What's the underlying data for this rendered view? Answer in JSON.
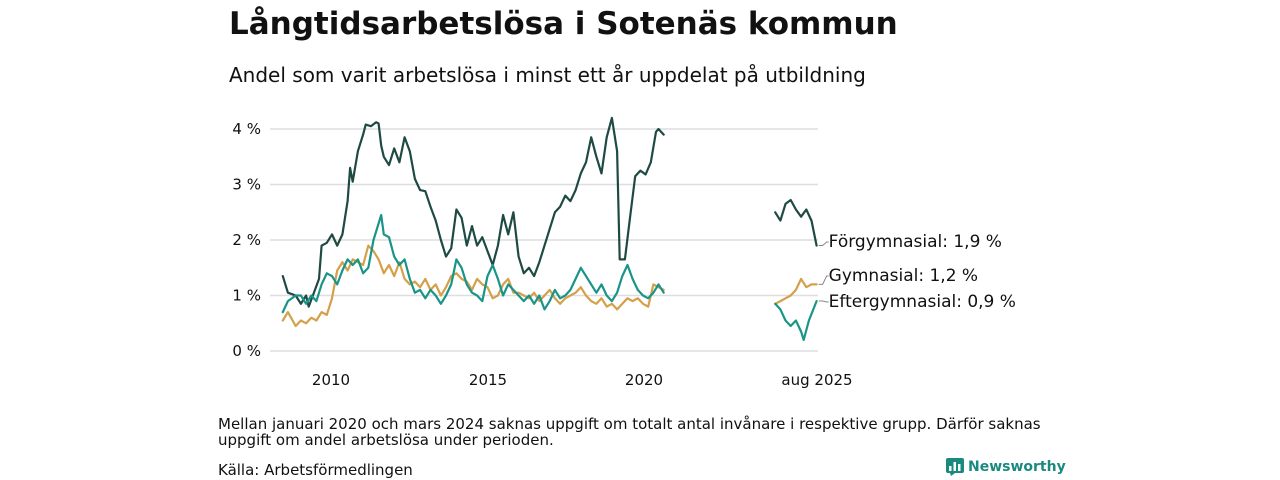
{
  "header": {
    "title": "Långtidsarbetslösa i Sotenäs kommun",
    "subtitle": "Andel som varit arbetslösa i minst ett år uppdelat på utbildning"
  },
  "footer": {
    "note": "Mellan januari 2020 och mars 2024 saknas uppgift om totalt antal invånare i respektive grupp. Därför saknas uppgift om andel arbetslösa under perioden.",
    "source": "Källa: Arbetsförmedlingen",
    "brand": "Newsworthy"
  },
  "chart_data": {
    "type": "line",
    "title": "Långtidsarbetslösa i Sotenäs kommun",
    "subtitle": "Andel som varit arbetslösa i minst ett år uppdelat på utbildning",
    "x_tick_labels": [
      "2010",
      "2015",
      "2020",
      "aug 2025"
    ],
    "y_tick_labels": [
      "0 %",
      "1 %",
      "2 %",
      "3 %",
      "4 %"
    ],
    "ylim": [
      0,
      4.3
    ],
    "grid": true,
    "legend": "end-of-line labels",
    "series": [
      {
        "name": "Förgymnasial",
        "end_label": "Förgymnasial: 1,9 %",
        "color": "#1f4a44",
        "segments": [
          [
            [
              "2008-06",
              1.35
            ],
            [
              "2008-08",
              1.05
            ],
            [
              "2008-11",
              1.0
            ],
            [
              "2009-01",
              0.85
            ],
            [
              "2009-03",
              1.0
            ],
            [
              "2009-04",
              0.8
            ],
            [
              "2009-06",
              1.05
            ],
            [
              "2009-08",
              1.3
            ],
            [
              "2009-09",
              1.9
            ],
            [
              "2009-11",
              1.95
            ],
            [
              "2010-01",
              2.1
            ],
            [
              "2010-03",
              1.9
            ],
            [
              "2010-05",
              2.1
            ],
            [
              "2010-07",
              2.7
            ],
            [
              "2010-08",
              3.3
            ],
            [
              "2010-09",
              3.05
            ],
            [
              "2010-11",
              3.6
            ],
            [
              "2011-01",
              3.9
            ],
            [
              "2011-02",
              4.08
            ],
            [
              "2011-04",
              4.05
            ],
            [
              "2011-06",
              4.12
            ],
            [
              "2011-07",
              4.1
            ],
            [
              "2011-08",
              3.7
            ],
            [
              "2011-09",
              3.5
            ],
            [
              "2011-11",
              3.35
            ],
            [
              "2012-01",
              3.65
            ],
            [
              "2012-03",
              3.4
            ],
            [
              "2012-05",
              3.85
            ],
            [
              "2012-07",
              3.6
            ],
            [
              "2012-09",
              3.1
            ],
            [
              "2012-11",
              2.9
            ],
            [
              "2013-01",
              2.88
            ],
            [
              "2013-03",
              2.6
            ],
            [
              "2013-05",
              2.35
            ],
            [
              "2013-07",
              2.0
            ],
            [
              "2013-09",
              1.7
            ],
            [
              "2013-11",
              1.85
            ],
            [
              "2014-01",
              2.55
            ],
            [
              "2014-03",
              2.4
            ],
            [
              "2014-05",
              1.9
            ],
            [
              "2014-07",
              2.25
            ],
            [
              "2014-09",
              1.9
            ],
            [
              "2014-11",
              2.05
            ],
            [
              "2015-01",
              1.8
            ],
            [
              "2015-03",
              1.55
            ],
            [
              "2015-05",
              1.9
            ],
            [
              "2015-07",
              2.45
            ],
            [
              "2015-09",
              2.1
            ],
            [
              "2015-11",
              2.5
            ],
            [
              "2016-01",
              1.7
            ],
            [
              "2016-03",
              1.4
            ],
            [
              "2016-05",
              1.5
            ],
            [
              "2016-07",
              1.35
            ],
            [
              "2016-09",
              1.6
            ],
            [
              "2016-11",
              1.9
            ],
            [
              "2017-01",
              2.2
            ],
            [
              "2017-03",
              2.5
            ],
            [
              "2017-05",
              2.6
            ],
            [
              "2017-07",
              2.8
            ],
            [
              "2017-09",
              2.7
            ],
            [
              "2017-11",
              2.9
            ],
            [
              "2018-01",
              3.2
            ],
            [
              "2018-03",
              3.4
            ],
            [
              "2018-05",
              3.85
            ],
            [
              "2018-07",
              3.5
            ],
            [
              "2018-09",
              3.2
            ],
            [
              "2018-11",
              3.85
            ],
            [
              "2019-01",
              4.2
            ],
            [
              "2019-03",
              3.6
            ],
            [
              "2019-04",
              1.65
            ],
            [
              "2019-06",
              1.65
            ],
            [
              "2019-08",
              2.4
            ],
            [
              "2019-10",
              3.15
            ],
            [
              "2019-12",
              3.25
            ],
            [
              "2020-02",
              3.18
            ],
            [
              "2020-04",
              3.4
            ],
            [
              "2020-06",
              3.95
            ],
            [
              "2020-07",
              4.0
            ],
            [
              "2020-09",
              3.9
            ]
          ],
          [
            [
              "2024-04",
              2.5
            ],
            [
              "2024-06",
              2.35
            ],
            [
              "2024-08",
              2.65
            ],
            [
              "2024-10",
              2.72
            ],
            [
              "2024-12",
              2.55
            ],
            [
              "2025-02",
              2.42
            ],
            [
              "2025-04",
              2.55
            ],
            [
              "2025-06",
              2.35
            ],
            [
              "2025-08",
              1.9
            ]
          ]
        ]
      },
      {
        "name": "Gymnasial",
        "end_label": "Gymnasial: 1,2 %",
        "color": "#d4a04a",
        "segments": [
          [
            [
              "2008-06",
              0.55
            ],
            [
              "2008-08",
              0.7
            ],
            [
              "2008-11",
              0.45
            ],
            [
              "2009-01",
              0.55
            ],
            [
              "2009-03",
              0.5
            ],
            [
              "2009-05",
              0.6
            ],
            [
              "2009-07",
              0.55
            ],
            [
              "2009-09",
              0.7
            ],
            [
              "2009-11",
              0.65
            ],
            [
              "2010-01",
              0.95
            ],
            [
              "2010-03",
              1.45
            ],
            [
              "2010-05",
              1.6
            ],
            [
              "2010-07",
              1.45
            ],
            [
              "2010-09",
              1.65
            ],
            [
              "2010-11",
              1.6
            ],
            [
              "2011-01",
              1.55
            ],
            [
              "2011-03",
              1.9
            ],
            [
              "2011-05",
              1.8
            ],
            [
              "2011-07",
              1.65
            ],
            [
              "2011-09",
              1.4
            ],
            [
              "2011-11",
              1.55
            ],
            [
              "2012-01",
              1.35
            ],
            [
              "2012-03",
              1.6
            ],
            [
              "2012-05",
              1.3
            ],
            [
              "2012-07",
              1.2
            ],
            [
              "2012-09",
              1.25
            ],
            [
              "2012-11",
              1.15
            ],
            [
              "2013-01",
              1.3
            ],
            [
              "2013-03",
              1.1
            ],
            [
              "2013-05",
              1.2
            ],
            [
              "2013-07",
              1.0
            ],
            [
              "2013-09",
              1.15
            ],
            [
              "2013-11",
              1.35
            ],
            [
              "2014-01",
              1.4
            ],
            [
              "2014-03",
              1.3
            ],
            [
              "2014-05",
              1.25
            ],
            [
              "2014-07",
              1.1
            ],
            [
              "2014-09",
              1.3
            ],
            [
              "2014-11",
              1.2
            ],
            [
              "2015-01",
              1.15
            ],
            [
              "2015-03",
              0.95
            ],
            [
              "2015-05",
              1.0
            ],
            [
              "2015-07",
              1.2
            ],
            [
              "2015-09",
              1.3
            ],
            [
              "2015-11",
              1.05
            ],
            [
              "2016-01",
              1.05
            ],
            [
              "2016-03",
              1.0
            ],
            [
              "2016-05",
              0.95
            ],
            [
              "2016-07",
              1.05
            ],
            [
              "2016-09",
              0.9
            ],
            [
              "2016-11",
              1.0
            ],
            [
              "2017-01",
              1.1
            ],
            [
              "2017-03",
              0.95
            ],
            [
              "2017-05",
              0.85
            ],
            [
              "2017-07",
              0.95
            ],
            [
              "2017-09",
              1.0
            ],
            [
              "2017-11",
              1.05
            ],
            [
              "2018-01",
              1.15
            ],
            [
              "2018-03",
              1.0
            ],
            [
              "2018-05",
              0.9
            ],
            [
              "2018-07",
              0.85
            ],
            [
              "2018-09",
              0.95
            ],
            [
              "2018-11",
              0.8
            ],
            [
              "2019-01",
              0.85
            ],
            [
              "2019-03",
              0.75
            ],
            [
              "2019-05",
              0.85
            ],
            [
              "2019-07",
              0.95
            ],
            [
              "2019-09",
              0.9
            ],
            [
              "2019-11",
              0.95
            ],
            [
              "2020-01",
              0.85
            ],
            [
              "2020-03",
              0.8
            ],
            [
              "2020-05",
              1.2
            ],
            [
              "2020-07",
              1.15
            ],
            [
              "2020-09",
              1.1
            ]
          ],
          [
            [
              "2024-04",
              0.85
            ],
            [
              "2024-06",
              0.9
            ],
            [
              "2024-08",
              0.95
            ],
            [
              "2024-10",
              1.0
            ],
            [
              "2024-12",
              1.1
            ],
            [
              "2025-02",
              1.3
            ],
            [
              "2025-04",
              1.15
            ],
            [
              "2025-06",
              1.2
            ],
            [
              "2025-08",
              1.2
            ]
          ]
        ]
      },
      {
        "name": "Eftergymnasial",
        "end_label": "Eftergymnasial: 0,9 %",
        "color": "#1a9488",
        "segments": [
          [
            [
              "2008-06",
              0.7
            ],
            [
              "2008-08",
              0.9
            ],
            [
              "2008-11",
              1.0
            ],
            [
              "2009-01",
              1.0
            ],
            [
              "2009-03",
              0.85
            ],
            [
              "2009-05",
              1.0
            ],
            [
              "2009-07",
              0.9
            ],
            [
              "2009-09",
              1.2
            ],
            [
              "2009-11",
              1.4
            ],
            [
              "2010-01",
              1.35
            ],
            [
              "2010-03",
              1.2
            ],
            [
              "2010-05",
              1.45
            ],
            [
              "2010-07",
              1.65
            ],
            [
              "2010-09",
              1.55
            ],
            [
              "2010-11",
              1.65
            ],
            [
              "2011-01",
              1.4
            ],
            [
              "2011-03",
              1.5
            ],
            [
              "2011-05",
              2.0
            ],
            [
              "2011-07",
              2.3
            ],
            [
              "2011-08",
              2.45
            ],
            [
              "2011-09",
              2.1
            ],
            [
              "2011-11",
              2.05
            ],
            [
              "2012-01",
              1.7
            ],
            [
              "2012-03",
              1.55
            ],
            [
              "2012-05",
              1.65
            ],
            [
              "2012-07",
              1.3
            ],
            [
              "2012-09",
              1.05
            ],
            [
              "2012-11",
              1.1
            ],
            [
              "2013-01",
              0.95
            ],
            [
              "2013-03",
              1.1
            ],
            [
              "2013-05",
              1.0
            ],
            [
              "2013-07",
              0.85
            ],
            [
              "2013-09",
              1.0
            ],
            [
              "2013-11",
              1.2
            ],
            [
              "2014-01",
              1.65
            ],
            [
              "2014-03",
              1.5
            ],
            [
              "2014-05",
              1.2
            ],
            [
              "2014-07",
              1.05
            ],
            [
              "2014-09",
              1.0
            ],
            [
              "2014-11",
              0.9
            ],
            [
              "2015-01",
              1.35
            ],
            [
              "2015-03",
              1.55
            ],
            [
              "2015-05",
              1.3
            ],
            [
              "2015-07",
              1.0
            ],
            [
              "2015-09",
              1.2
            ],
            [
              "2015-11",
              1.1
            ],
            [
              "2016-01",
              1.0
            ],
            [
              "2016-03",
              0.9
            ],
            [
              "2016-05",
              1.0
            ],
            [
              "2016-07",
              0.85
            ],
            [
              "2016-09",
              1.0
            ],
            [
              "2016-11",
              0.75
            ],
            [
              "2017-01",
              0.9
            ],
            [
              "2017-03",
              1.1
            ],
            [
              "2017-05",
              0.95
            ],
            [
              "2017-07",
              1.0
            ],
            [
              "2017-09",
              1.1
            ],
            [
              "2017-11",
              1.3
            ],
            [
              "2018-01",
              1.5
            ],
            [
              "2018-03",
              1.35
            ],
            [
              "2018-05",
              1.2
            ],
            [
              "2018-07",
              1.05
            ],
            [
              "2018-09",
              1.2
            ],
            [
              "2018-11",
              1.0
            ],
            [
              "2019-01",
              0.9
            ],
            [
              "2019-03",
              1.05
            ],
            [
              "2019-05",
              1.35
            ],
            [
              "2019-07",
              1.55
            ],
            [
              "2019-09",
              1.3
            ],
            [
              "2019-11",
              1.1
            ],
            [
              "2020-01",
              1.0
            ],
            [
              "2020-03",
              0.95
            ],
            [
              "2020-05",
              1.05
            ],
            [
              "2020-07",
              1.2
            ],
            [
              "2020-09",
              1.05
            ]
          ],
          [
            [
              "2024-04",
              0.85
            ],
            [
              "2024-06",
              0.75
            ],
            [
              "2024-08",
              0.55
            ],
            [
              "2024-10",
              0.45
            ],
            [
              "2024-12",
              0.55
            ],
            [
              "2025-02",
              0.35
            ],
            [
              "2025-03",
              0.2
            ],
            [
              "2025-05",
              0.55
            ],
            [
              "2025-08",
              0.9
            ]
          ]
        ]
      }
    ]
  }
}
